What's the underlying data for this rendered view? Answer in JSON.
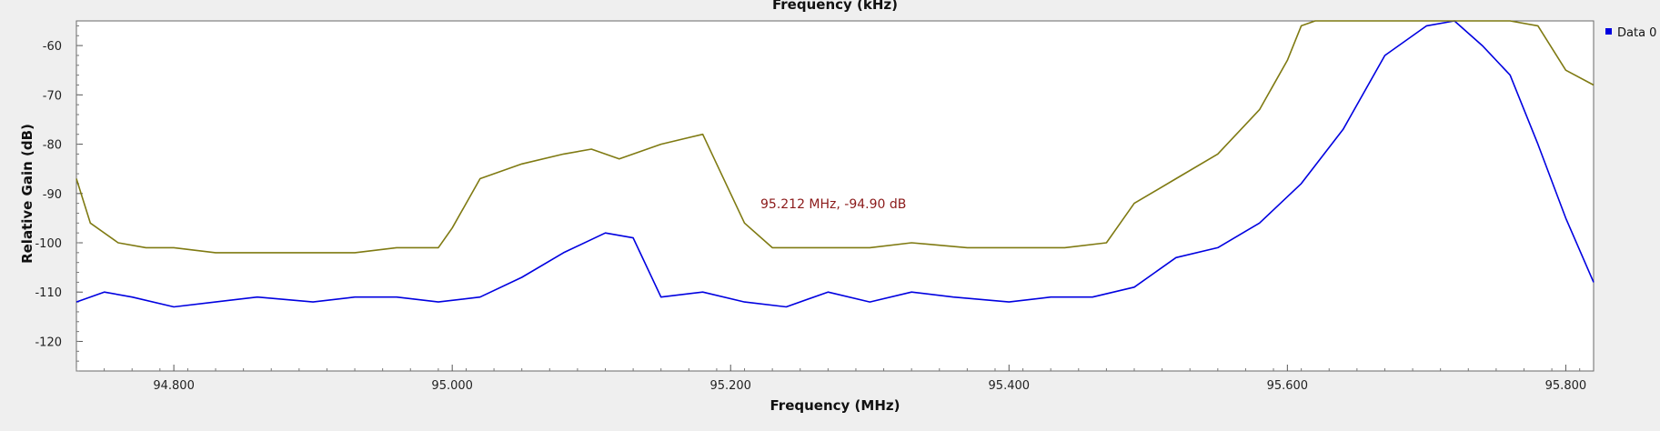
{
  "chart_data": {
    "type": "line",
    "top_axis_title": "Frequency (kHz)",
    "xlabel": "Frequency (MHz)",
    "ylabel": "Relative Gain (dB)",
    "xlim": [
      94.73,
      95.82
    ],
    "ylim": [
      -126,
      -55
    ],
    "x_ticks": [
      "94.800",
      "95.000",
      "95.200",
      "95.400",
      "95.600",
      "95.800"
    ],
    "x_tick_values": [
      94.8,
      95.0,
      95.2,
      95.4,
      95.6,
      95.8
    ],
    "y_ticks": [
      "-60",
      "-70",
      "-80",
      "-90",
      "-100",
      "-110",
      "-120"
    ],
    "y_tick_values": [
      -60,
      -70,
      -80,
      -90,
      -100,
      -110,
      -120
    ],
    "grid": false,
    "legend_position": "top-right",
    "annotation": {
      "text": "95.212 MHz, -94.90 dB"
    },
    "series": [
      {
        "name": "Data 0",
        "color": "#0000e0",
        "x": [
          94.73,
          94.75,
          94.77,
          94.8,
          94.83,
          94.86,
          94.9,
          94.93,
          94.96,
          94.99,
          95.02,
          95.05,
          95.08,
          95.11,
          95.13,
          95.15,
          95.18,
          95.21,
          95.24,
          95.27,
          95.3,
          95.33,
          95.36,
          95.4,
          95.43,
          95.46,
          95.49,
          95.52,
          95.55,
          95.58,
          95.61,
          95.64,
          95.67,
          95.7,
          95.72,
          95.74,
          95.76,
          95.78,
          95.8,
          95.82
        ],
        "y": [
          -112,
          -110,
          -111,
          -113,
          -112,
          -111,
          -112,
          -111,
          -111,
          -112,
          -111,
          -107,
          -102,
          -98,
          -99,
          -111,
          -110,
          -112,
          -113,
          -110,
          -112,
          -110,
          -111,
          -112,
          -111,
          -111,
          -109,
          -103,
          -101,
          -96,
          -88,
          -77,
          -62,
          -56,
          -55,
          -60,
          -66,
          -80,
          -95,
          -108
        ]
      },
      {
        "name": "",
        "color": "#7f7a12",
        "x": [
          94.73,
          94.74,
          94.76,
          94.78,
          94.8,
          94.83,
          94.86,
          94.9,
          94.93,
          94.96,
          94.99,
          95.0,
          95.02,
          95.05,
          95.08,
          95.1,
          95.12,
          95.15,
          95.18,
          95.19,
          95.21,
          95.23,
          95.26,
          95.3,
          95.33,
          95.37,
          95.41,
          95.44,
          95.47,
          95.49,
          95.52,
          95.55,
          95.58,
          95.6,
          95.61,
          95.62,
          95.7,
          95.76,
          95.78,
          95.8,
          95.82
        ],
        "y": [
          -87,
          -96,
          -100,
          -101,
          -101,
          -102,
          -102,
          -102,
          -102,
          -101,
          -101,
          -97,
          -87,
          -84,
          -82,
          -81,
          -83,
          -80,
          -78,
          -84,
          -96,
          -101,
          -101,
          -101,
          -100,
          -101,
          -101,
          -101,
          -100,
          -92,
          -87,
          -82,
          -73,
          -63,
          -56,
          -54,
          -54,
          -54,
          -56,
          -65,
          -68
        ]
      }
    ]
  }
}
